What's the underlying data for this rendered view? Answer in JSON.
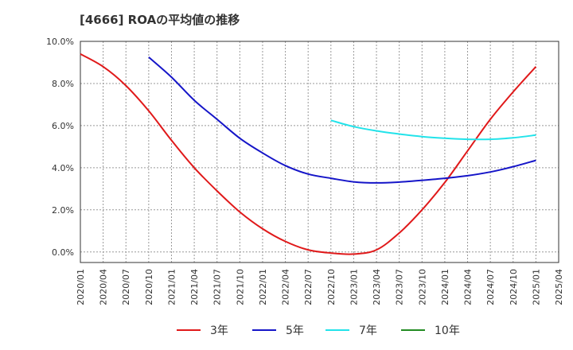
{
  "chart_data": {
    "type": "line",
    "title": "[4666]  ROAの平均値の推移",
    "xlabel": "",
    "ylabel": "",
    "ylim": [
      -0.5,
      10.0
    ],
    "yticks": [
      "0.0%",
      "2.0%",
      "4.0%",
      "6.0%",
      "8.0%",
      "10.0%"
    ],
    "ytick_values": [
      0,
      2,
      4,
      6,
      8,
      10
    ],
    "xticks": [
      "2020/01",
      "2020/04",
      "2020/07",
      "2020/10",
      "2021/01",
      "2021/04",
      "2021/07",
      "2021/10",
      "2022/01",
      "2022/04",
      "2022/07",
      "2022/10",
      "2023/01",
      "2023/04",
      "2023/07",
      "2023/10",
      "2024/01",
      "2024/04",
      "2024/07",
      "2024/10",
      "2025/01",
      "2025/04"
    ],
    "grid": true,
    "legend_position": "bottom",
    "series": [
      {
        "name": "3年",
        "color": "#e0191a",
        "x": [
          "2020/01",
          "2020/04",
          "2020/07",
          "2020/10",
          "2021/01",
          "2021/04",
          "2021/07",
          "2021/10",
          "2022/01",
          "2022/04",
          "2022/07",
          "2022/10",
          "2023/01",
          "2023/04",
          "2023/07",
          "2023/10",
          "2024/01",
          "2024/04",
          "2024/07",
          "2024/10",
          "2025/01"
        ],
        "values": [
          9.4,
          8.8,
          7.9,
          6.7,
          5.3,
          4.0,
          2.9,
          1.9,
          1.1,
          0.5,
          0.1,
          -0.05,
          -0.1,
          0.1,
          0.9,
          2.0,
          3.3,
          4.8,
          6.3,
          7.6,
          8.8
        ]
      },
      {
        "name": "5年",
        "color": "#1515c8",
        "x": [
          "2020/10",
          "2021/01",
          "2021/04",
          "2021/07",
          "2021/10",
          "2022/01",
          "2022/04",
          "2022/07",
          "2022/10",
          "2023/01",
          "2023/04",
          "2023/07",
          "2023/10",
          "2024/01",
          "2024/04",
          "2024/07",
          "2024/10",
          "2025/01"
        ],
        "values": [
          9.25,
          8.3,
          7.2,
          6.3,
          5.4,
          4.7,
          4.1,
          3.7,
          3.5,
          3.33,
          3.28,
          3.32,
          3.4,
          3.5,
          3.62,
          3.8,
          4.05,
          4.35
        ]
      },
      {
        "name": "7年",
        "color": "#22e3ea",
        "x": [
          "2022/10",
          "2023/01",
          "2023/04",
          "2023/07",
          "2023/10",
          "2024/01",
          "2024/04",
          "2024/07",
          "2024/10",
          "2025/01"
        ],
        "values": [
          6.25,
          5.95,
          5.75,
          5.6,
          5.48,
          5.4,
          5.35,
          5.35,
          5.42,
          5.55
        ]
      },
      {
        "name": "10年",
        "color": "#228b22",
        "x": [],
        "values": []
      }
    ]
  }
}
